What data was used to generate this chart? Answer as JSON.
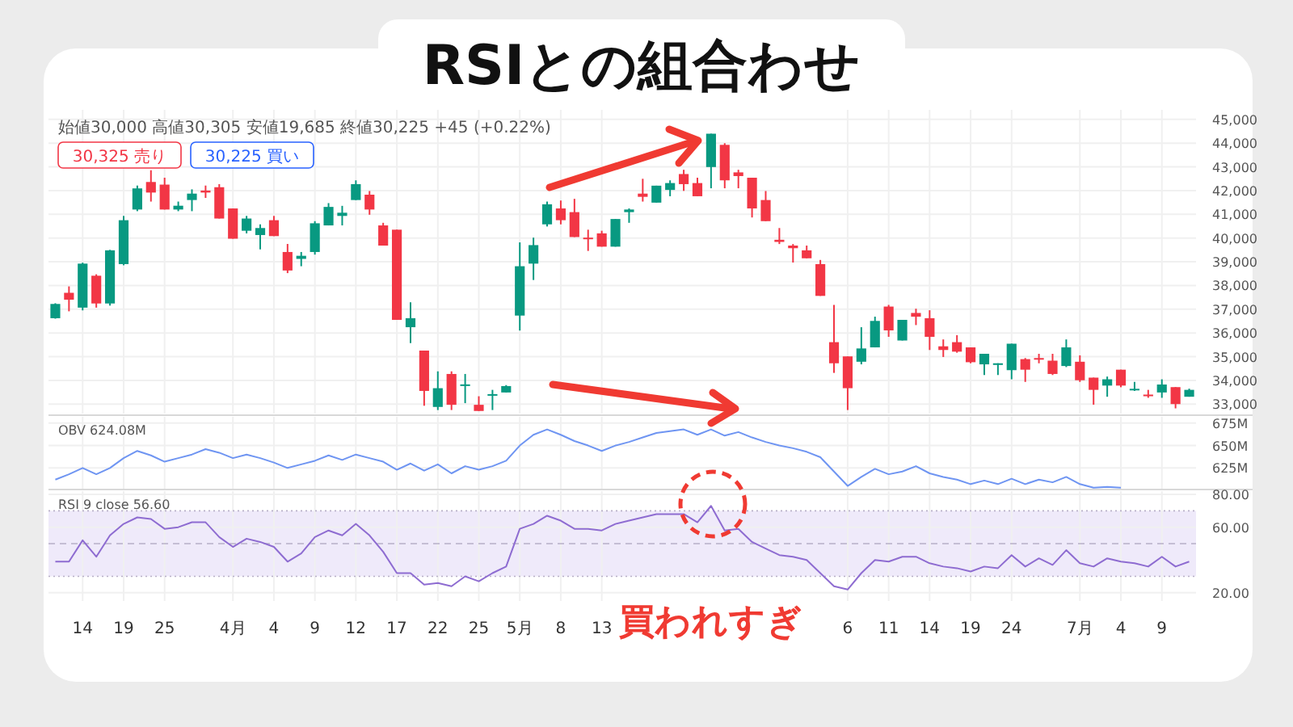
{
  "chart_data": [
    {
      "type": "candlestick",
      "title": "RSIとの組合わせ",
      "subtitle": "始値30,000 高値30,305 安値19,685 終値30,225 +45 (+0.22%)",
      "annotations": [
        "30,325 売り",
        "30,225 買い"
      ],
      "categories": [
        null,
        null,
        null,
        null,
        null,
        null,
        null,
        null,
        null,
        null,
        null,
        null,
        null,
        null,
        null,
        null,
        null,
        null,
        null,
        null,
        null,
        null,
        null,
        null,
        null,
        null,
        null,
        null,
        null,
        null,
        null,
        null,
        null,
        null,
        null,
        null,
        null,
        null,
        null,
        null,
        null,
        null,
        null,
        null,
        null,
        null,
        null,
        null,
        null,
        null,
        null,
        null,
        null,
        null,
        null,
        null,
        null,
        null,
        null,
        null,
        null,
        null,
        null,
        null,
        null,
        null,
        null,
        null,
        null,
        null,
        null,
        null,
        null,
        null,
        null,
        null,
        null,
        null,
        null,
        null,
        null,
        null,
        null,
        null
      ],
      "ohlc": [
        [
          36620,
          37250,
          36600,
          37220
        ],
        [
          37690,
          37960,
          36910,
          37400
        ],
        [
          37065,
          38960,
          36950,
          38920
        ],
        [
          38410,
          38470,
          37065,
          37240
        ],
        [
          37240,
          39500,
          37150,
          39480
        ],
        [
          38900,
          40930,
          38850,
          40750
        ],
        [
          41200,
          42210,
          41130,
          42090
        ],
        [
          42360,
          42855,
          41535,
          41915
        ],
        [
          42250,
          42540,
          41200,
          41200
        ],
        [
          41200,
          41535,
          41130,
          41360
        ],
        [
          41600,
          42050,
          41130,
          41870
        ],
        [
          42000,
          42210,
          41690,
          41915
        ],
        [
          42140,
          42270,
          40820,
          40820
        ],
        [
          41245,
          41245,
          39970,
          39970
        ],
        [
          40305,
          40930,
          40195,
          40820
        ],
        [
          40125,
          40575,
          39520,
          40420
        ],
        [
          40750,
          40930,
          40080,
          40080
        ],
        [
          39410,
          39750,
          38520,
          38630
        ],
        [
          39120,
          39410,
          38810,
          39250
        ],
        [
          39410,
          40710,
          39300,
          40620
        ],
        [
          40530,
          41470,
          40530,
          41310
        ],
        [
          40930,
          41355,
          40530,
          41065
        ],
        [
          41600,
          42430,
          41600,
          42270
        ],
        [
          41825,
          41980,
          40980,
          41200
        ],
        [
          40530,
          40640,
          39680,
          39680
        ],
        [
          40350,
          40350,
          36550,
          36550
        ],
        [
          36240,
          37290,
          35570,
          36620
        ],
        [
          35255,
          35255,
          32930,
          33555
        ],
        [
          32880,
          34380,
          32750,
          33670
        ],
        [
          34270,
          34380,
          32750,
          32970
        ],
        [
          33800,
          34270,
          33040,
          33830
        ],
        [
          32970,
          33330,
          32710,
          32710
        ],
        [
          33370,
          33600,
          32750,
          33420
        ],
        [
          33490,
          33800,
          33490,
          33760
        ],
        [
          36730,
          39815,
          36100,
          38810
        ],
        [
          38920,
          40015,
          38230,
          39700
        ],
        [
          40575,
          41535,
          40485,
          41420
        ],
        [
          41245,
          41580,
          40575,
          40750
        ],
        [
          41090,
          41650,
          40040,
          40040
        ],
        [
          40015,
          40350,
          39455,
          39990
        ],
        [
          40195,
          40305,
          39635,
          39635
        ],
        [
          39635,
          40800,
          39635,
          40800
        ],
        [
          41090,
          41245,
          40640,
          41200
        ],
        [
          41870,
          42495,
          41535,
          41735
        ],
        [
          41490,
          42205,
          41490,
          42205
        ],
        [
          42025,
          42430,
          41760,
          42315
        ],
        [
          42695,
          42875,
          41985,
          42270
        ],
        [
          42315,
          42540,
          41760,
          41760
        ],
        [
          42990,
          44395,
          42095,
          44395
        ],
        [
          43925,
          43995,
          42095,
          42430
        ],
        [
          42765,
          42875,
          42095,
          42610
        ],
        [
          42540,
          42540,
          40865,
          41245
        ],
        [
          41600,
          41980,
          40710,
          40710
        ],
        [
          39925,
          40420,
          39745,
          39835
        ],
        [
          39680,
          39745,
          38965,
          39570
        ],
        [
          39480,
          39680,
          39145,
          39145
        ],
        [
          38900,
          39075,
          37560,
          37560
        ],
        [
          35610,
          37180,
          34315,
          34720
        ],
        [
          35010,
          35010,
          32750,
          33670
        ],
        [
          34785,
          36240,
          34675,
          35345
        ],
        [
          35390,
          36685,
          35390,
          36505
        ],
        [
          37110,
          37180,
          35835,
          36105
        ],
        [
          35680,
          36550,
          35680,
          36550
        ],
        [
          36840,
          37020,
          36330,
          36685
        ],
        [
          36620,
          36955,
          35280,
          35835
        ],
        [
          35435,
          35725,
          34985,
          35280
        ],
        [
          35610,
          35905,
          35165,
          35210
        ],
        [
          35390,
          35390,
          34720,
          34765
        ],
        [
          34675,
          35120,
          34225,
          35120
        ],
        [
          34650,
          34720,
          34225,
          34720
        ],
        [
          34430,
          35545,
          34045,
          35545
        ],
        [
          34895,
          34940,
          33935,
          34450
        ],
        [
          34940,
          35120,
          34720,
          34875
        ],
        [
          34830,
          35120,
          34225,
          34270
        ],
        [
          34605,
          35725,
          34560,
          35390
        ],
        [
          34785,
          35055,
          33935,
          34005
        ],
        [
          34115,
          34115,
          32975,
          33600
        ],
        [
          33780,
          34160,
          33310,
          34045
        ],
        [
          34450,
          34450,
          33710,
          33780
        ],
        [
          33600,
          33935,
          33555,
          33645
        ],
        [
          33400,
          33600,
          33265,
          33335
        ],
        [
          33490,
          34045,
          33265,
          33825
        ],
        [
          33715,
          33715,
          32820,
          33000
        ],
        [
          33310,
          33650,
          33310,
          33600
        ]
      ],
      "ylim": [
        32600,
        45400
      ],
      "yticks": [
        {
          "value": 33000,
          "label": "33,000"
        },
        {
          "value": 34000,
          "label": "34,000"
        },
        {
          "value": 35000,
          "label": "35,000"
        },
        {
          "value": 36000,
          "label": "36,000"
        },
        {
          "value": 37000,
          "label": "37,000"
        },
        {
          "value": 38000,
          "label": "38,000"
        },
        {
          "value": 39000,
          "label": "39,000"
        },
        {
          "value": 40000,
          "label": "40,000"
        },
        {
          "value": 41000,
          "label": "41,000"
        },
        {
          "value": 42000,
          "label": "42,000"
        },
        {
          "value": 43000,
          "label": "43,000"
        },
        {
          "value": 44000,
          "label": "44,000"
        },
        {
          "value": 45000,
          "label": "45,000"
        }
      ],
      "grid": true,
      "tick_labels": "y"
    },
    {
      "type": "line",
      "title": "OBV 624.08M",
      "categories": [
        null,
        null,
        null,
        null,
        null,
        null,
        null,
        null,
        null,
        null,
        null,
        null,
        null,
        null,
        null,
        null,
        null,
        null,
        null,
        null,
        null,
        null,
        null,
        null,
        null,
        null,
        null,
        null,
        null,
        null,
        null,
        null,
        null,
        null,
        null,
        null,
        null,
        null,
        null,
        null,
        null,
        null,
        null,
        null,
        null,
        null,
        null,
        null,
        null,
        null,
        null,
        null,
        null,
        null,
        null,
        null,
        null,
        null,
        null,
        null,
        null,
        null,
        null,
        null,
        null,
        null,
        null,
        null,
        null,
        null,
        null,
        null,
        null,
        null,
        null,
        null,
        null,
        null,
        null,
        null,
        null,
        null,
        null,
        null
      ],
      "series": [
        {
          "color": "#6f95f2",
          "values": [
            612,
            618,
            625,
            618,
            625,
            636,
            644,
            639,
            632,
            636,
            640,
            646,
            642,
            636,
            640,
            636,
            631,
            625,
            629,
            633,
            639,
            634,
            640,
            636,
            632,
            623,
            630,
            622,
            629,
            619,
            627,
            623,
            627,
            633,
            650,
            662,
            668,
            662,
            655,
            650,
            644,
            650,
            654,
            659,
            664,
            666,
            668,
            662,
            668,
            661,
            665,
            659,
            654,
            650,
            647,
            643,
            637,
            621,
            605,
            615,
            624,
            618,
            621,
            627,
            619,
            615,
            612,
            607,
            611,
            607,
            613,
            607,
            612,
            609,
            615,
            607,
            603,
            604,
            603,
            null,
            null,
            null,
            null,
            null
          ]
        }
      ],
      "ylim": [
        601,
        682
      ],
      "yticks": [
        {
          "value": 625,
          "label": "625M"
        },
        {
          "value": 650,
          "label": "650M"
        },
        {
          "value": 675,
          "label": "675M"
        }
      ],
      "grid": true,
      "tick_labels": "y"
    },
    {
      "type": "line",
      "title": "RSI 9 close 56.60",
      "annotations": [
        "買われすぎ"
      ],
      "categories": [
        null,
        null,
        "14",
        null,
        null,
        "19",
        null,
        null,
        "25",
        null,
        null,
        null,
        null,
        "4月",
        null,
        null,
        "4",
        null,
        null,
        "9",
        null,
        null,
        "12",
        null,
        null,
        "17",
        null,
        null,
        "22",
        null,
        null,
        "25",
        null,
        null,
        "5月",
        null,
        null,
        "8",
        null,
        null,
        "13",
        null,
        null,
        null,
        null,
        null,
        null,
        null,
        null,
        null,
        null,
        null,
        null,
        null,
        null,
        null,
        null,
        null,
        "6",
        null,
        null,
        "11",
        null,
        null,
        "14",
        null,
        null,
        "19",
        null,
        null,
        "24",
        null,
        null,
        null,
        null,
        "7月",
        null,
        null,
        "4",
        null,
        null,
        "9",
        null,
        null
      ],
      "series": [
        {
          "color": "#8e6cd1",
          "values": [
            39,
            39,
            52,
            42,
            55,
            62,
            66,
            65,
            59,
            60,
            63,
            63,
            54,
            48,
            53,
            51,
            48,
            39,
            44,
            54,
            58,
            55,
            62,
            55,
            45,
            32,
            32,
            25,
            26,
            24,
            30,
            27,
            32,
            36,
            59,
            62,
            67,
            64,
            59,
            59,
            58,
            62,
            64,
            66,
            68,
            68,
            68,
            63,
            73,
            58,
            59,
            51,
            47,
            43,
            42,
            40,
            32,
            24,
            22,
            32,
            40,
            39,
            42,
            42,
            38,
            36,
            35,
            33,
            36,
            35,
            43,
            36,
            41,
            37,
            46,
            38,
            36,
            41,
            39,
            38,
            36,
            42,
            36,
            39
          ]
        }
      ],
      "ylim": [
        15,
        82
      ],
      "yticks": [
        {
          "value": 20,
          "label": "20.00"
        },
        {
          "value": 60,
          "label": "60.00"
        },
        {
          "value": 80,
          "label": "80.00"
        }
      ],
      "bands": [
        {
          "axis": "y",
          "from": 30,
          "to": 70,
          "color": "#efeafa"
        }
      ],
      "ref_lines": [
        {
          "axis": "y",
          "value": 70,
          "line_style": "dotted"
        },
        {
          "axis": "y",
          "value": 50,
          "line_style": "dashed"
        },
        {
          "axis": "y",
          "value": 30,
          "line_style": "dotted"
        }
      ],
      "grid": true
    }
  ]
}
